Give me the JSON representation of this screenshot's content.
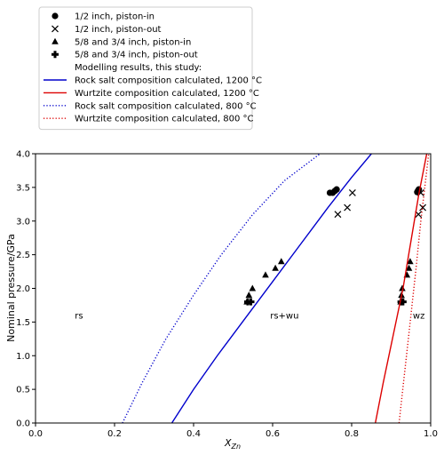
{
  "chart_data": {
    "type": "scatter",
    "xlabel_main": "X",
    "xlabel_sub": "Zn",
    "ylabel": "Nominal pressure/GPa",
    "xlim": [
      0.0,
      1.0
    ],
    "ylim": [
      0.0,
      4.0
    ],
    "xticks": [
      "0.0",
      "0.2",
      "0.4",
      "0.6",
      "0.8",
      "1.0"
    ],
    "yticks": [
      "0.0",
      "0.5",
      "1.0",
      "1.5",
      "2.0",
      "2.5",
      "3.0",
      "3.5",
      "4.0"
    ],
    "grid": false,
    "legend_placement": "top-left, outside above plot",
    "region_labels": [
      {
        "text": "rs",
        "x": 0.11,
        "y": 1.55
      },
      {
        "text": "rs+wu",
        "x": 0.63,
        "y": 1.55
      },
      {
        "text": "wz",
        "x": 0.97,
        "y": 1.55
      }
    ],
    "series": [
      {
        "name": "1/2 inch, piston-in",
        "kind": "scatter",
        "marker": "circle",
        "color": "#000000",
        "points": [
          [
            0.745,
            3.42
          ],
          [
            0.752,
            3.42
          ],
          [
            0.758,
            3.45
          ],
          [
            0.762,
            3.47
          ],
          [
            0.966,
            3.43
          ],
          [
            0.968,
            3.45
          ],
          [
            0.97,
            3.47
          ]
        ]
      },
      {
        "name": "1/2 inch, piston-out",
        "kind": "scatter",
        "marker": "x",
        "color": "#000000",
        "points": [
          [
            0.765,
            3.1
          ],
          [
            0.789,
            3.2
          ],
          [
            0.802,
            3.42
          ],
          [
            0.969,
            3.1
          ],
          [
            0.975,
            3.42
          ],
          [
            0.98,
            3.2
          ]
        ]
      },
      {
        "name": "5/8 and 3/4 inch, piston-in",
        "kind": "scatter",
        "marker": "triangle",
        "color": "#000000",
        "points": [
          [
            0.535,
            1.8
          ],
          [
            0.54,
            1.9
          ],
          [
            0.549,
            2.0
          ],
          [
            0.582,
            2.2
          ],
          [
            0.607,
            2.3
          ],
          [
            0.622,
            2.4
          ],
          [
            0.924,
            1.8
          ],
          [
            0.926,
            1.9
          ],
          [
            0.928,
            2.0
          ],
          [
            0.94,
            2.2
          ],
          [
            0.945,
            2.3
          ],
          [
            0.948,
            2.4
          ]
        ]
      },
      {
        "name": "5/8 and 3/4 inch, piston-out",
        "kind": "scatter",
        "marker": "plus",
        "color": "#000000",
        "points": [
          [
            0.537,
            1.8
          ],
          [
            0.545,
            1.8
          ],
          [
            0.925,
            1.8
          ],
          [
            0.93,
            1.8
          ]
        ]
      },
      {
        "name": "",
        "kind": "header",
        "label": "Modelling results, this study:"
      },
      {
        "name": "Rock salt composition calculated, 1200 °C",
        "kind": "line",
        "style": "solid",
        "color": "#0000cc",
        "points": [
          [
            0.345,
            0.0
          ],
          [
            0.4,
            0.5
          ],
          [
            0.46,
            1.0
          ],
          [
            0.53,
            1.55
          ],
          [
            0.6,
            2.1
          ],
          [
            0.67,
            2.65
          ],
          [
            0.74,
            3.2
          ],
          [
            0.8,
            3.65
          ],
          [
            0.85,
            4.0
          ]
        ]
      },
      {
        "name": "Wurtzite composition calculated, 1200 °C",
        "kind": "line",
        "style": "solid",
        "color": "#dd0000",
        "points": [
          [
            0.86,
            0.0
          ],
          [
            0.88,
            0.6
          ],
          [
            0.905,
            1.3
          ],
          [
            0.93,
            2.0
          ],
          [
            0.95,
            2.7
          ],
          [
            0.97,
            3.4
          ],
          [
            0.99,
            4.0
          ]
        ]
      },
      {
        "name": "Rock salt composition calculated, 800 °C",
        "kind": "line",
        "style": "dotted",
        "color": "#0000cc",
        "points": [
          [
            0.22,
            0.0
          ],
          [
            0.27,
            0.6
          ],
          [
            0.33,
            1.25
          ],
          [
            0.4,
            1.9
          ],
          [
            0.47,
            2.5
          ],
          [
            0.55,
            3.1
          ],
          [
            0.63,
            3.6
          ],
          [
            0.72,
            4.0
          ]
        ]
      },
      {
        "name": "Wurtzite composition calculated, 800 °C",
        "kind": "line",
        "style": "dotted",
        "color": "#dd0000",
        "points": [
          [
            0.92,
            0.0
          ],
          [
            0.935,
            0.8
          ],
          [
            0.95,
            1.6
          ],
          [
            0.963,
            2.3
          ],
          [
            0.975,
            3.0
          ],
          [
            0.985,
            3.5
          ],
          [
            0.995,
            4.0
          ]
        ]
      }
    ]
  }
}
